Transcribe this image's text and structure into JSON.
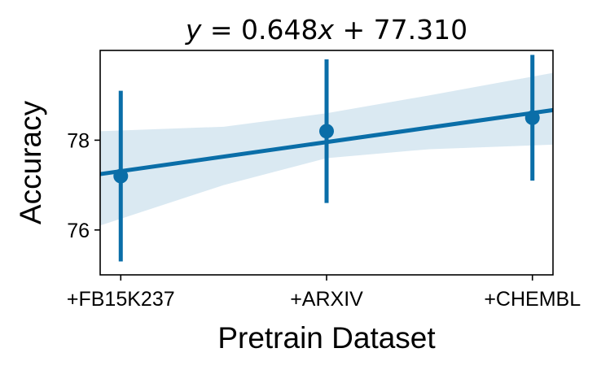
{
  "chart_data": {
    "type": "scatter",
    "title_html": "<tspan font-style='italic'>y</tspan> = 0.648<tspan font-style='italic'>x</tspan> + 77.310",
    "title": "y = 0.648x + 77.310",
    "xlabel": "Pretrain Dataset",
    "ylabel": "Accuracy",
    "categories": [
      "+FB15K237",
      "+ARXIV",
      "+CHEMBL"
    ],
    "x": [
      0,
      1,
      2
    ],
    "ylim": [
      75.0,
      80.0
    ],
    "xlim": [
      -0.1,
      2.1
    ],
    "yticks": [
      76,
      78
    ],
    "grid": false,
    "series": [
      {
        "values": [
          77.2,
          78.2,
          78.5
        ],
        "err_low": [
          75.3,
          76.6,
          77.1
        ],
        "err_high": [
          79.1,
          79.8,
          79.9
        ]
      }
    ],
    "regression": {
      "slope": 0.648,
      "intercept": 77.31
    },
    "confidence_band": {
      "x": [
        -0.1,
        0.5,
        1.0,
        1.5,
        2.1
      ],
      "lower": [
        76.1,
        77.0,
        77.6,
        77.8,
        77.9
      ],
      "upper": [
        78.2,
        78.3,
        78.6,
        79.0,
        79.5
      ]
    },
    "colors": {
      "main": "#0a6ea8",
      "band": "#0a6ea8"
    }
  }
}
